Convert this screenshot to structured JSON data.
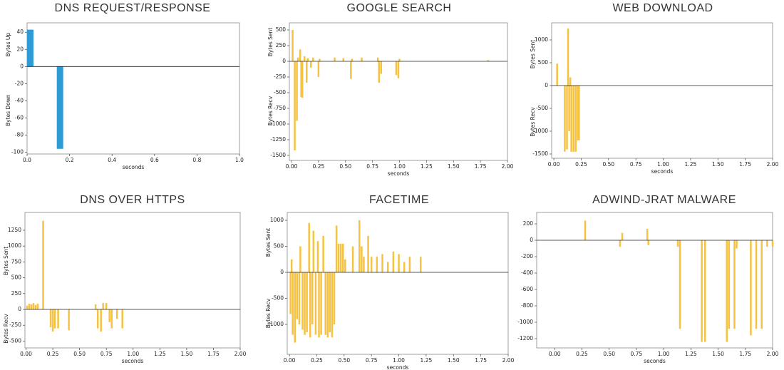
{
  "chart_data": [
    {
      "type": "bar",
      "title": "DNS REQUEST/RESPONSE",
      "x_label": "seconds",
      "y_labels": [
        "Bytes Up",
        "Bytes Down"
      ],
      "color": "#2e9ad6",
      "x": [
        0.015,
        0.155
      ],
      "values": [
        43,
        -96
      ],
      "xlim": [
        0,
        1
      ],
      "ylim": [
        -102,
        51
      ],
      "xticks": [
        {
          "value": 0,
          "label": "0.0"
        },
        {
          "value": 0.2,
          "label": "0.2"
        },
        {
          "value": 0.4,
          "label": "0.4"
        },
        {
          "value": 0.6,
          "label": "0.6"
        },
        {
          "value": 0.8,
          "label": "0.8"
        },
        {
          "value": 1,
          "label": "1.0"
        }
      ],
      "yticks": [
        40,
        20,
        0,
        -20,
        -40,
        -60,
        -80,
        -100
      ]
    },
    {
      "type": "bar",
      "title": "GOOGLE SEARCH",
      "x_label": "seconds",
      "y_labels": [
        "Bytes Sent",
        "Bytes Recv"
      ],
      "color": "#f5c242",
      "x": [
        0.01,
        0.03,
        0.05,
        0.06,
        0.08,
        0.09,
        0.1,
        0.12,
        0.14,
        0.15,
        0.18,
        0.2,
        0.25,
        0.26,
        0.4,
        0.48,
        0.55,
        0.56,
        0.65,
        0.8,
        0.81,
        0.83,
        0.97,
        0.99,
        1.0,
        1.82
      ],
      "values": [
        500,
        -1420,
        -950,
        60,
        190,
        -570,
        -580,
        80,
        -340,
        50,
        -100,
        60,
        -250,
        40,
        60,
        50,
        -280,
        40,
        60,
        60,
        -340,
        -200,
        -220,
        -270,
        40,
        20
      ],
      "xlim": [
        -0.02,
        2
      ],
      "ylim": [
        -1580,
        614
      ],
      "xticks": [
        {
          "value": 0,
          "label": "0.00"
        },
        {
          "value": 0.25,
          "label": "0.25"
        },
        {
          "value": 0.5,
          "label": "0.50"
        },
        {
          "value": 0.75,
          "label": "0.75"
        },
        {
          "value": 1,
          "label": "1.00"
        },
        {
          "value": 1.25,
          "label": "1.25"
        },
        {
          "value": 1.5,
          "label": "1.50"
        },
        {
          "value": 1.75,
          "label": "1.75"
        },
        {
          "value": 2,
          "label": "2.00"
        }
      ],
      "yticks": [
        500,
        250,
        0,
        -250,
        -500,
        -750,
        -1000,
        -1250,
        -1500
      ]
    },
    {
      "type": "bar",
      "title": "WEB DOWNLOAD",
      "x_label": "seconds",
      "y_labels": [
        "Bytes Sent",
        "Bytes Recv"
      ],
      "color": "#f5c242",
      "x": [
        0.03,
        0.1,
        0.12,
        0.13,
        0.14,
        0.15,
        0.16,
        0.18,
        0.2,
        0.22,
        0.23
      ],
      "values": [
        480,
        -1450,
        -1400,
        1250,
        -1000,
        180,
        -1450,
        -1450,
        -1450,
        -1200,
        -1200
      ],
      "xlim": [
        -0.02,
        2
      ],
      "ylim": [
        -1594,
        1375
      ],
      "xticks": [
        {
          "value": 0,
          "label": "0.00"
        },
        {
          "value": 0.25,
          "label": "0.25"
        },
        {
          "value": 0.5,
          "label": "0.50"
        },
        {
          "value": 0.75,
          "label": "0.75"
        },
        {
          "value": 1,
          "label": "1.00"
        },
        {
          "value": 1.25,
          "label": "1.25"
        },
        {
          "value": 1.5,
          "label": "1.50"
        },
        {
          "value": 1.75,
          "label": "1.75"
        },
        {
          "value": 2,
          "label": "2.00"
        }
      ],
      "yticks": [
        1000,
        500,
        0,
        -500,
        -1000,
        -1500
      ]
    },
    {
      "type": "bar",
      "title": "DNS OVER HTTPS",
      "x_label": "seconds",
      "y_labels": [
        "Bytes Sent",
        "Bytes Recv"
      ],
      "color": "#f5c242",
      "x": [
        0.01,
        0.03,
        0.05,
        0.07,
        0.09,
        0.11,
        0.16,
        0.23,
        0.25,
        0.27,
        0.3,
        0.4,
        0.65,
        0.67,
        0.7,
        0.72,
        0.75,
        0.78,
        0.8,
        0.85,
        0.9
      ],
      "values": [
        60,
        90,
        80,
        100,
        70,
        90,
        1400,
        -280,
        -350,
        -300,
        -300,
        -330,
        80,
        -300,
        -350,
        100,
        100,
        -200,
        -300,
        -150,
        -300
      ],
      "xlim": [
        -0.01,
        2
      ],
      "ylim": [
        -608,
        1531
      ],
      "xticks": [
        {
          "value": 0,
          "label": "0.00"
        },
        {
          "value": 0.25,
          "label": "0.25"
        },
        {
          "value": 0.5,
          "label": "0.50"
        },
        {
          "value": 0.75,
          "label": "0.75"
        },
        {
          "value": 1,
          "label": "1.00"
        },
        {
          "value": 1.25,
          "label": "1.25"
        },
        {
          "value": 1.5,
          "label": "1.50"
        },
        {
          "value": 1.75,
          "label": "1.75"
        },
        {
          "value": 2,
          "label": "2.00"
        }
      ],
      "yticks": [
        1250,
        1000,
        750,
        500,
        250,
        0,
        -250,
        -500
      ]
    },
    {
      "type": "bar",
      "title": "FACETIME",
      "x_label": "seconds",
      "y_labels": [
        "Bytes Sent",
        "Bytes Recv"
      ],
      "color": "#f5c242",
      "x": [
        0.01,
        0.02,
        0.03,
        0.05,
        0.07,
        0.09,
        0.1,
        0.12,
        0.14,
        0.16,
        0.18,
        0.19,
        0.21,
        0.22,
        0.24,
        0.26,
        0.27,
        0.29,
        0.31,
        0.33,
        0.35,
        0.37,
        0.39,
        0.41,
        0.43,
        0.45,
        0.47,
        0.49,
        0.51,
        0.58,
        0.64,
        0.66,
        0.68,
        0.72,
        0.75,
        0.8,
        0.85,
        0.9,
        0.95,
        1.0,
        1.05,
        1.1,
        1.2
      ],
      "values": [
        -800,
        250,
        -1200,
        -1350,
        -900,
        -1000,
        500,
        -1100,
        -1200,
        -1150,
        950,
        -1250,
        -1000,
        800,
        -1200,
        600,
        -1250,
        -1200,
        700,
        -1200,
        -1250,
        -1150,
        -1250,
        -1000,
        900,
        550,
        550,
        550,
        250,
        500,
        1000,
        500,
        300,
        700,
        300,
        300,
        350,
        200,
        400,
        350,
        200,
        300,
        300
      ],
      "xlim": [
        -0.02,
        2
      ],
      "ylim": [
        -1575,
        1151
      ],
      "xticks": [
        {
          "value": 0,
          "label": "0.00"
        },
        {
          "value": 0.25,
          "label": "0.25"
        },
        {
          "value": 0.5,
          "label": "0.50"
        },
        {
          "value": 0.75,
          "label": "0.75"
        },
        {
          "value": 1,
          "label": "1.00"
        },
        {
          "value": 1.25,
          "label": "1.25"
        },
        {
          "value": 1.5,
          "label": "1.50"
        },
        {
          "value": 1.75,
          "label": "1.75"
        },
        {
          "value": 2,
          "label": "2.00"
        }
      ],
      "yticks": [
        1000,
        500,
        0,
        -500,
        -1000
      ]
    },
    {
      "type": "bar",
      "title": "ADWIND-JRAT MALWARE",
      "x_label": "seconds",
      "color": "#f5c242",
      "x": [
        0.28,
        0.6,
        0.62,
        0.85,
        0.86,
        1.13,
        1.15,
        1.35,
        1.38,
        1.58,
        1.6,
        1.65,
        1.67,
        1.8,
        1.85,
        1.9,
        1.95,
        2.0
      ],
      "values": [
        240,
        -80,
        90,
        140,
        -60,
        -80,
        -1080,
        -1240,
        -1240,
        -1240,
        -1080,
        -1080,
        -100,
        -1160,
        -1080,
        -1080,
        -80,
        -80
      ],
      "xlim": [
        -0.165,
        2
      ],
      "ylim": [
        -1313,
        339
      ],
      "xticks": [
        {
          "value": 0,
          "label": "0.00"
        },
        {
          "value": 0.25,
          "label": "0.25"
        },
        {
          "value": 0.5,
          "label": "0.50"
        },
        {
          "value": 0.75,
          "label": "0.75"
        },
        {
          "value": 1,
          "label": "1.00"
        },
        {
          "value": 1.25,
          "label": "1.25"
        },
        {
          "value": 1.5,
          "label": "1.50"
        },
        {
          "value": 1.75,
          "label": "1.75"
        },
        {
          "value": 2,
          "label": "2.00"
        }
      ],
      "yticks": [
        200,
        0,
        -200,
        -400,
        -600,
        -800,
        -1000,
        -1200
      ]
    }
  ]
}
